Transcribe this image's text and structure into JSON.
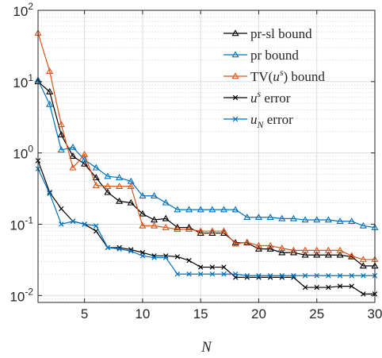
{
  "chart_data": {
    "type": "line",
    "xlabel": "N",
    "ylabel": "",
    "title": "",
    "xlim": [
      1,
      30
    ],
    "ylim": [
      0.008,
      100
    ],
    "yscale": "log",
    "grid": true,
    "legend_position": "top-right",
    "x_ticks": [
      "5",
      "10",
      "15",
      "20",
      "25",
      "30"
    ],
    "y_ticks": [
      {
        "base": "10",
        "exp": "-2"
      },
      {
        "base": "10",
        "exp": "-1"
      },
      {
        "base": "10",
        "exp": "0"
      },
      {
        "base": "10",
        "exp": "1"
      },
      {
        "base": "10",
        "exp": "2"
      }
    ],
    "x": [
      1,
      2,
      3,
      4,
      5,
      6,
      7,
      8,
      9,
      10,
      11,
      12,
      13,
      14,
      15,
      16,
      17,
      18,
      19,
      20,
      21,
      22,
      23,
      24,
      25,
      26,
      27,
      28,
      29,
      30
    ],
    "series": [
      {
        "name": "pr-sl bound",
        "label_parts": [
          {
            "t": "pr-sl bound",
            "i": false
          }
        ],
        "color": "#000000",
        "marker": "triangle",
        "values": [
          10,
          7.2,
          1.8,
          0.9,
          0.7,
          0.45,
          0.28,
          0.21,
          0.2,
          0.14,
          0.115,
          0.12,
          0.09,
          0.09,
          0.075,
          0.075,
          0.075,
          0.055,
          0.055,
          0.045,
          0.045,
          0.04,
          0.04,
          0.037,
          0.037,
          0.037,
          0.037,
          0.035,
          0.026,
          0.026
        ]
      },
      {
        "name": "pr bound",
        "label_parts": [
          {
            "t": "pr bound",
            "i": false
          }
        ],
        "color": "#0072BD",
        "marker": "triangle",
        "values": [
          10.5,
          4.8,
          1.1,
          1.2,
          0.8,
          0.62,
          0.47,
          0.45,
          0.4,
          0.25,
          0.25,
          0.2,
          0.16,
          0.16,
          0.16,
          0.16,
          0.16,
          0.16,
          0.125,
          0.125,
          0.125,
          0.12,
          0.12,
          0.115,
          0.115,
          0.115,
          0.11,
          0.11,
          0.095,
          0.09
        ]
      },
      {
        "name": "TV(u^s) bound",
        "label_parts": [
          {
            "t": "TV(",
            "i": false
          },
          {
            "t": "u",
            "i": true
          },
          {
            "t": "s",
            "i": true,
            "sup": true
          },
          {
            "t": ") bound",
            "i": false
          }
        ],
        "color": "#D95319",
        "marker": "triangle",
        "values": [
          48,
          14,
          2.5,
          0.62,
          0.95,
          0.35,
          0.34,
          0.34,
          0.34,
          0.095,
          0.095,
          0.09,
          0.085,
          0.085,
          0.08,
          0.08,
          0.08,
          0.053,
          0.056,
          0.05,
          0.05,
          0.046,
          0.043,
          0.043,
          0.043,
          0.043,
          0.043,
          0.036,
          0.032,
          0.032
        ]
      },
      {
        "name": "u^s error",
        "label_parts": [
          {
            "t": "u",
            "i": true
          },
          {
            "t": "s",
            "i": true,
            "sup": true
          },
          {
            "t": " error",
            "i": false
          }
        ],
        "color": "#000000",
        "marker": "x",
        "values": [
          0.78,
          0.28,
          0.165,
          0.11,
          0.1,
          0.08,
          0.047,
          0.047,
          0.044,
          0.04,
          0.036,
          0.036,
          0.035,
          0.031,
          0.025,
          0.025,
          0.025,
          0.018,
          0.018,
          0.018,
          0.018,
          0.018,
          0.018,
          0.013,
          0.013,
          0.013,
          0.0135,
          0.0135,
          0.0105,
          0.0105
        ]
      },
      {
        "name": "u_N error",
        "label_parts": [
          {
            "t": "u",
            "i": true
          },
          {
            "t": "N",
            "i": true,
            "sub": true
          },
          {
            "t": " error",
            "i": false
          }
        ],
        "color": "#0072BD",
        "marker": "x",
        "values": [
          0.6,
          0.27,
          0.1,
          0.11,
          0.1,
          0.095,
          0.047,
          0.045,
          0.042,
          0.036,
          0.034,
          0.034,
          0.02,
          0.02,
          0.02,
          0.02,
          0.02,
          0.02,
          0.019,
          0.019,
          0.019,
          0.019,
          0.019,
          0.019,
          0.019,
          0.019,
          0.019,
          0.019,
          0.019,
          0.019
        ]
      }
    ]
  }
}
